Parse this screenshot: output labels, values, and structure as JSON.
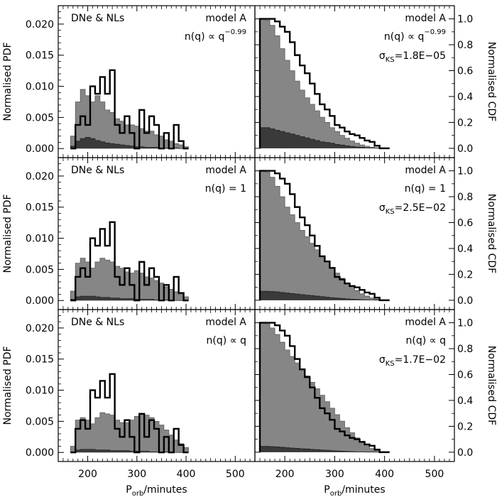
{
  "axes": {
    "x_label_main": "P",
    "x_label_sub": "orb",
    "x_label_rest": "/minutes",
    "y_label_left": "Normalised PDF",
    "y_label_right": "Normalised CDF",
    "x_ticks": [
      "200",
      "300",
      "400",
      "500"
    ],
    "x_tick_values": [
      200,
      300,
      400,
      500
    ],
    "pdf_ticks": [
      "0.000",
      "0.005",
      "0.010",
      "0.015",
      "0.020"
    ],
    "pdf_tick_values": [
      0.0,
      0.005,
      0.01,
      0.015,
      0.02
    ],
    "cdf_ticks": [
      "0.0",
      "0.2",
      "0.4",
      "0.6",
      "0.8",
      "1.0"
    ],
    "cdf_tick_values": [
      0.0,
      0.2,
      0.4,
      0.6,
      0.8,
      1.0
    ]
  },
  "colors": {
    "model_fill": "#868686",
    "sub_fill": "#3a3a3a",
    "observed_line": "#000000",
    "axis": "#000000"
  },
  "chart_data": [
    {
      "type": "area",
      "panel": "pdf",
      "row": 1,
      "label_sample": "DNe & NLs",
      "label_model": "model A",
      "label_nq": "n(q) ∝ q",
      "label_nq_exp": "−0.99",
      "xlim": [
        140,
        540
      ],
      "ylim": [
        -0.001,
        0.0225
      ],
      "bin_edges": [
        165,
        175,
        185,
        195,
        205,
        215,
        225,
        235,
        245,
        255,
        265,
        275,
        285,
        295,
        305,
        315,
        325,
        335,
        345,
        355,
        365,
        375,
        385,
        395,
        405
      ],
      "series": [
        {
          "name": "model",
          "values": [
            0.002,
            0.0075,
            0.0095,
            0.0085,
            0.0075,
            0.0085,
            0.0075,
            0.0062,
            0.0058,
            0.0048,
            0.0044,
            0.0038,
            0.0038,
            0.0036,
            0.0032,
            0.0028,
            0.0028,
            0.0022,
            0.002,
            0.0014,
            0.0012,
            0.0008,
            0.0006,
            0.0003
          ]
        },
        {
          "name": "subset",
          "values": [
            0.0004,
            0.0012,
            0.0016,
            0.0018,
            0.0016,
            0.0013,
            0.0011,
            0.0009,
            0.0008,
            0.0007,
            0.0006,
            0.0005,
            0.0004,
            0.0003,
            0.0003,
            0.0002,
            0.0002,
            0.0002,
            0.0001,
            0.0001,
            0.0001,
            0.0001,
            0.0,
            0.0
          ]
        },
        {
          "name": "observed",
          "values": [
            0.0,
            0.0038,
            0.0052,
            0.0038,
            0.01,
            0.0088,
            0.0115,
            0.0088,
            0.0126,
            0.0038,
            0.0025,
            0.0052,
            0.0025,
            0.0,
            0.0062,
            0.0025,
            0.0052,
            0.0038,
            0.0,
            0.0025,
            0.0,
            0.0038,
            0.0012,
            0.0
          ]
        }
      ]
    },
    {
      "type": "area",
      "panel": "cdf",
      "row": 1,
      "label_model": "model A",
      "label_nq": "n(q) ∝ q",
      "label_nq_exp": "−0.99",
      "label_ks_sym": "σ",
      "label_ks_sub": "KS",
      "label_ks_val": "=1.8E−05",
      "xlim": [
        140,
        540
      ],
      "ylim": [
        -0.05,
        1.08
      ],
      "grid": false,
      "bin_edges": [
        150,
        160,
        170,
        180,
        190,
        200,
        210,
        220,
        230,
        240,
        250,
        260,
        270,
        280,
        290,
        300,
        310,
        320,
        330,
        340,
        350,
        360,
        370,
        380,
        390,
        400,
        410
      ],
      "series": [
        {
          "name": "model",
          "values": [
            1.0,
            0.99,
            0.95,
            0.87,
            0.77,
            0.68,
            0.6,
            0.52,
            0.45,
            0.39,
            0.34,
            0.29,
            0.24,
            0.2,
            0.16,
            0.13,
            0.1,
            0.078,
            0.057,
            0.04,
            0.026,
            0.016,
            0.009,
            0.004,
            0.001,
            0.0
          ]
        },
        {
          "name": "subset",
          "values": [
            0.16,
            0.16,
            0.15,
            0.14,
            0.13,
            0.12,
            0.11,
            0.1,
            0.09,
            0.08,
            0.07,
            0.06,
            0.05,
            0.045,
            0.04,
            0.03,
            0.025,
            0.02,
            0.015,
            0.01,
            0.008,
            0.005,
            0.003,
            0.002,
            0.001,
            0.0
          ]
        },
        {
          "name": "observed",
          "values": [
            1.0,
            1.0,
            1.0,
            0.98,
            0.94,
            0.9,
            0.82,
            0.72,
            0.64,
            0.58,
            0.5,
            0.42,
            0.34,
            0.3,
            0.25,
            0.18,
            0.16,
            0.13,
            0.11,
            0.1,
            0.08,
            0.06,
            0.05,
            0.02,
            0.0,
            0.0
          ]
        }
      ]
    },
    {
      "type": "area",
      "panel": "pdf",
      "row": 2,
      "label_sample": "DNe & NLs",
      "label_model": "model A",
      "label_nq": "n(q) = 1",
      "label_nq_exp": "",
      "xlim": [
        140,
        540
      ],
      "ylim": [
        -0.001,
        0.0225
      ],
      "bin_edges": [
        165,
        175,
        185,
        195,
        205,
        215,
        225,
        235,
        245,
        255,
        265,
        275,
        285,
        295,
        305,
        315,
        325,
        335,
        345,
        355,
        365,
        375,
        385,
        395,
        405
      ],
      "series": [
        {
          "name": "model",
          "values": [
            0.0015,
            0.006,
            0.0068,
            0.0062,
            0.0052,
            0.0062,
            0.0068,
            0.0065,
            0.0062,
            0.0055,
            0.0052,
            0.0046,
            0.0044,
            0.0048,
            0.0044,
            0.0038,
            0.0036,
            0.0032,
            0.0028,
            0.0022,
            0.0018,
            0.0014,
            0.001,
            0.0006
          ]
        },
        {
          "name": "subset",
          "values": [
            0.0002,
            0.0006,
            0.0007,
            0.0007,
            0.0007,
            0.0006,
            0.0005,
            0.0005,
            0.0004,
            0.0004,
            0.0003,
            0.0003,
            0.0003,
            0.0002,
            0.0002,
            0.0002,
            0.0002,
            0.0001,
            0.0001,
            0.0001,
            0.0001,
            0.0,
            0.0,
            0.0
          ]
        },
        {
          "name": "observed",
          "values": [
            0.0,
            0.0038,
            0.0052,
            0.0038,
            0.01,
            0.0088,
            0.0115,
            0.0088,
            0.0126,
            0.0038,
            0.0025,
            0.0052,
            0.0025,
            0.0,
            0.0062,
            0.0025,
            0.0052,
            0.0038,
            0.0,
            0.0025,
            0.0,
            0.0038,
            0.0012,
            0.0
          ]
        }
      ]
    },
    {
      "type": "area",
      "panel": "cdf",
      "row": 2,
      "label_model": "model A",
      "label_nq": "n(q) = 1",
      "label_nq_exp": "",
      "label_ks_sym": "σ",
      "label_ks_sub": "KS",
      "label_ks_val": "=2.5E−02",
      "xlim": [
        140,
        540
      ],
      "ylim": [
        -0.05,
        1.08
      ],
      "grid": false,
      "bin_edges": [
        150,
        160,
        170,
        180,
        190,
        200,
        210,
        220,
        230,
        240,
        250,
        260,
        270,
        280,
        290,
        300,
        310,
        320,
        330,
        340,
        350,
        360,
        370,
        380,
        390,
        400,
        410
      ],
      "series": [
        {
          "name": "model",
          "values": [
            1.0,
            0.99,
            0.95,
            0.88,
            0.8,
            0.72,
            0.66,
            0.6,
            0.54,
            0.49,
            0.44,
            0.39,
            0.34,
            0.3,
            0.25,
            0.21,
            0.17,
            0.13,
            0.1,
            0.075,
            0.05,
            0.032,
            0.018,
            0.008,
            0.002,
            0.0
          ]
        },
        {
          "name": "subset",
          "values": [
            0.07,
            0.07,
            0.068,
            0.065,
            0.06,
            0.056,
            0.052,
            0.048,
            0.044,
            0.04,
            0.036,
            0.032,
            0.028,
            0.024,
            0.02,
            0.017,
            0.014,
            0.011,
            0.008,
            0.006,
            0.004,
            0.003,
            0.002,
            0.001,
            0.0,
            0.0
          ]
        },
        {
          "name": "observed",
          "values": [
            1.0,
            1.0,
            1.0,
            0.98,
            0.94,
            0.9,
            0.82,
            0.72,
            0.64,
            0.58,
            0.5,
            0.42,
            0.34,
            0.3,
            0.25,
            0.18,
            0.16,
            0.13,
            0.11,
            0.1,
            0.08,
            0.06,
            0.05,
            0.02,
            0.0,
            0.0
          ]
        }
      ]
    },
    {
      "type": "area",
      "panel": "pdf",
      "row": 3,
      "label_sample": "DNe & NLs",
      "label_model": "model A",
      "label_nq": "n(q) ∝ q",
      "label_nq_exp": "",
      "xlim": [
        140,
        540
      ],
      "ylim": [
        -0.001,
        0.0225
      ],
      "bin_edges": [
        165,
        175,
        185,
        195,
        205,
        215,
        225,
        235,
        245,
        255,
        265,
        275,
        285,
        295,
        305,
        315,
        325,
        335,
        345,
        355,
        365,
        375,
        385,
        395,
        405
      ],
      "series": [
        {
          "name": "model",
          "values": [
            0.001,
            0.0052,
            0.0056,
            0.0052,
            0.0046,
            0.0056,
            0.0064,
            0.0062,
            0.006,
            0.0052,
            0.0048,
            0.0048,
            0.0052,
            0.0058,
            0.0062,
            0.006,
            0.0056,
            0.005,
            0.0044,
            0.0036,
            0.0028,
            0.002,
            0.0014,
            0.0008
          ]
        },
        {
          "name": "subset",
          "values": [
            0.0001,
            0.0004,
            0.0005,
            0.0005,
            0.0005,
            0.0004,
            0.0004,
            0.0004,
            0.0003,
            0.0003,
            0.0003,
            0.0003,
            0.0002,
            0.0002,
            0.0002,
            0.0002,
            0.0001,
            0.0001,
            0.0001,
            0.0001,
            0.0,
            0.0,
            0.0,
            0.0
          ]
        },
        {
          "name": "observed",
          "values": [
            0.0,
            0.0038,
            0.0052,
            0.0038,
            0.01,
            0.0088,
            0.0115,
            0.0088,
            0.0126,
            0.0038,
            0.0025,
            0.0052,
            0.0025,
            0.0,
            0.0062,
            0.0025,
            0.0052,
            0.0038,
            0.0,
            0.0025,
            0.0,
            0.0038,
            0.0012,
            0.0
          ]
        }
      ]
    },
    {
      "type": "area",
      "panel": "cdf",
      "row": 3,
      "label_model": "model A",
      "label_nq": "n(q) ∝ q",
      "label_nq_exp": "",
      "label_ks_sym": "σ",
      "label_ks_sub": "KS",
      "label_ks_val": "=1.7E−02",
      "xlim": [
        140,
        540
      ],
      "ylim": [
        -0.05,
        1.08
      ],
      "grid": false,
      "bin_edges": [
        150,
        160,
        170,
        180,
        190,
        200,
        210,
        220,
        230,
        240,
        250,
        260,
        270,
        280,
        290,
        300,
        310,
        320,
        330,
        340,
        350,
        360,
        370,
        380,
        390,
        400,
        410
      ],
      "series": [
        {
          "name": "model",
          "values": [
            1.0,
            0.99,
            0.96,
            0.91,
            0.85,
            0.79,
            0.74,
            0.69,
            0.64,
            0.59,
            0.54,
            0.49,
            0.44,
            0.39,
            0.34,
            0.29,
            0.24,
            0.19,
            0.15,
            0.11,
            0.075,
            0.05,
            0.028,
            0.013,
            0.004,
            0.0
          ]
        },
        {
          "name": "subset",
          "values": [
            0.045,
            0.045,
            0.043,
            0.041,
            0.038,
            0.035,
            0.032,
            0.03,
            0.027,
            0.025,
            0.022,
            0.02,
            0.017,
            0.015,
            0.012,
            0.01,
            0.008,
            0.006,
            0.005,
            0.003,
            0.002,
            0.001,
            0.001,
            0.0,
            0.0,
            0.0
          ]
        },
        {
          "name": "observed",
          "values": [
            1.0,
            1.0,
            1.0,
            0.98,
            0.94,
            0.9,
            0.82,
            0.72,
            0.64,
            0.58,
            0.5,
            0.42,
            0.34,
            0.3,
            0.25,
            0.18,
            0.16,
            0.13,
            0.11,
            0.1,
            0.08,
            0.06,
            0.05,
            0.02,
            0.0,
            0.0
          ]
        }
      ]
    }
  ]
}
